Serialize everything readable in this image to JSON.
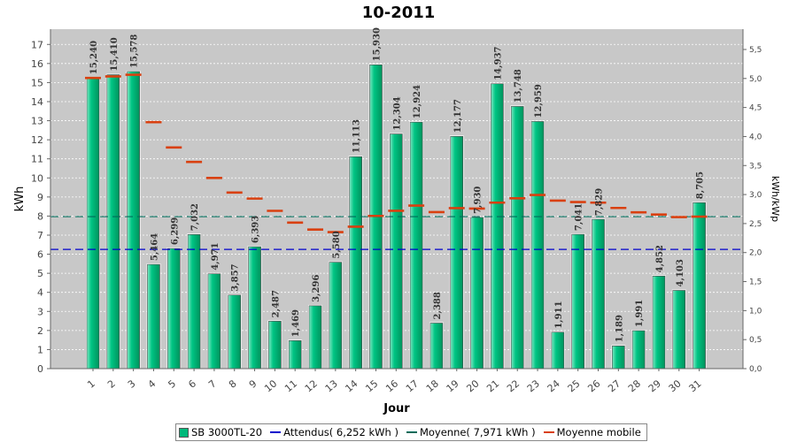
{
  "chart_data": {
    "type": "bar",
    "title": "10-2011",
    "xlabel": "Jour",
    "ylabel": "kWh",
    "y2label": "kWh/kWp",
    "ylim": [
      0,
      17.8
    ],
    "y2lim": [
      0,
      5.85
    ],
    "yticks": [
      0,
      1,
      2,
      3,
      4,
      5,
      6,
      7,
      8,
      9,
      10,
      11,
      12,
      13,
      14,
      15,
      16,
      17
    ],
    "y2ticks": [
      "0,0",
      "0,5",
      "1,0",
      "1,5",
      "2,0",
      "2,5",
      "3,0",
      "3,5",
      "4,0",
      "4,5",
      "5,0",
      "5,5"
    ],
    "grid": true,
    "legend_position": "bottom",
    "categories": [
      "1",
      "2",
      "3",
      "4",
      "5",
      "6",
      "7",
      "8",
      "9",
      "10",
      "11",
      "12",
      "13",
      "14",
      "15",
      "16",
      "17",
      "18",
      "19",
      "20",
      "21",
      "22",
      "23",
      "24",
      "25",
      "26",
      "27",
      "28",
      "29",
      "30",
      "31"
    ],
    "series": [
      {
        "name": "SB 3000TL-20",
        "kind": "bar",
        "color": "#00b87a",
        "values": [
          15.24,
          15.41,
          15.578,
          5.464,
          6.299,
          7.032,
          4.971,
          3.857,
          6.393,
          2.487,
          1.469,
          3.296,
          5.58,
          11.113,
          15.93,
          12.304,
          12.924,
          2.388,
          12.177,
          7.93,
          14.937,
          13.748,
          12.959,
          1.911,
          7.041,
          7.829,
          1.189,
          1.991,
          4.852,
          4.103,
          8.705
        ],
        "labels": [
          "15,240",
          "15,410",
          "15,578",
          "5,464",
          "6,299",
          "7,032",
          "4,971",
          "3,857",
          "6,393",
          "2,487",
          "1,469",
          "3,296",
          "5,580",
          "11,113",
          "15,930",
          "12,304",
          "12,924",
          "2,388",
          "12,177",
          "7,930",
          "14,937",
          "13,748",
          "12,959",
          "1,911",
          "7,041",
          "7,829",
          "1,189",
          "1,991",
          "4,852",
          "4,103",
          "8,705"
        ]
      },
      {
        "name": "Attendus( 6,252 kWh )",
        "kind": "hline",
        "color": "#0000cc",
        "value": 6.252
      },
      {
        "name": "Moyenne( 7,971 kWh )",
        "kind": "hline",
        "color": "#006b5a",
        "value": 7.971
      },
      {
        "name": "Moyenne mobile",
        "kind": "step",
        "color": "#d94010",
        "values": [
          15.24,
          15.325,
          15.409,
          12.923,
          11.598,
          10.837,
          10.0,
          9.232,
          8.917,
          8.274,
          7.655,
          7.292,
          7.16,
          7.442,
          8.008,
          8.276,
          8.55,
          8.208,
          8.416,
          8.392,
          8.703,
          8.933,
          9.108,
          8.808,
          8.737,
          8.703,
          8.425,
          8.195,
          8.08,
          7.947,
          7.971
        ]
      }
    ]
  }
}
